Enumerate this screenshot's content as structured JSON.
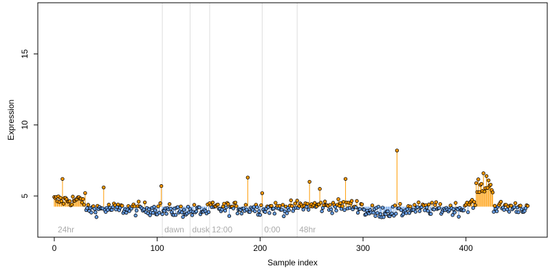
{
  "chart_data": {
    "type": "scatter",
    "title": "",
    "xlabel": "Sample index",
    "ylabel": "Expression",
    "xlim": [
      -16,
      479
    ],
    "ylim": [
      2.1,
      18.6
    ],
    "x_ticks": [
      0,
      100,
      200,
      300,
      400
    ],
    "y_ticks": [
      5,
      10,
      15
    ],
    "baseline": 4.25,
    "grid": false,
    "legend": "none",
    "colors": {
      "above_baseline": "#ff9a00",
      "below_baseline": "#6aa0e8",
      "point_stroke": "#000000",
      "phase_line": "#dddddd",
      "phase_label": "#aaaaaa"
    },
    "phase_markers": [
      {
        "x": 105,
        "label": "dawn"
      },
      {
        "x": 132,
        "label": "dusk"
      },
      {
        "x": 151,
        "label": "12:00"
      },
      {
        "x": 202,
        "label": "0:00"
      },
      {
        "x": 236,
        "label": "48hr"
      }
    ],
    "phase_labels_extra": [
      {
        "x": 2,
        "label": "24hr"
      }
    ],
    "points_count": 461,
    "highlighted_peaks": [
      {
        "x": 8,
        "y": 6.2
      },
      {
        "x": 48,
        "y": 5.6
      },
      {
        "x": 104,
        "y": 5.7
      },
      {
        "x": 188,
        "y": 6.3
      },
      {
        "x": 202,
        "y": 5.2
      },
      {
        "x": 248,
        "y": 6.0
      },
      {
        "x": 258,
        "y": 5.5
      },
      {
        "x": 283,
        "y": 6.2
      },
      {
        "x": 333,
        "y": 8.2
      },
      {
        "x": 417,
        "y": 6.6
      },
      {
        "x": 420,
        "y": 6.4
      },
      {
        "x": 422,
        "y": 6.1
      }
    ],
    "segment_levels": [
      {
        "range": [
          0,
          30
        ],
        "mean": 4.7
      },
      {
        "range": [
          31,
          104
        ],
        "mean": 4.1
      },
      {
        "range": [
          105,
          150
        ],
        "mean": 3.95
      },
      {
        "range": [
          151,
          200
        ],
        "mean": 4.15
      },
      {
        "range": [
          201,
          235
        ],
        "mean": 4.15
      },
      {
        "range": [
          236,
          300
        ],
        "mean": 4.3
      },
      {
        "range": [
          301,
          340
        ],
        "mean": 3.9
      },
      {
        "range": [
          341,
          398
        ],
        "mean": 4.1
      },
      {
        "range": [
          399,
          409
        ],
        "mean": 4.4
      },
      {
        "range": [
          410,
          426
        ],
        "mean": 5.6
      },
      {
        "range": [
          427,
          460
        ],
        "mean": 4.2
      }
    ]
  }
}
